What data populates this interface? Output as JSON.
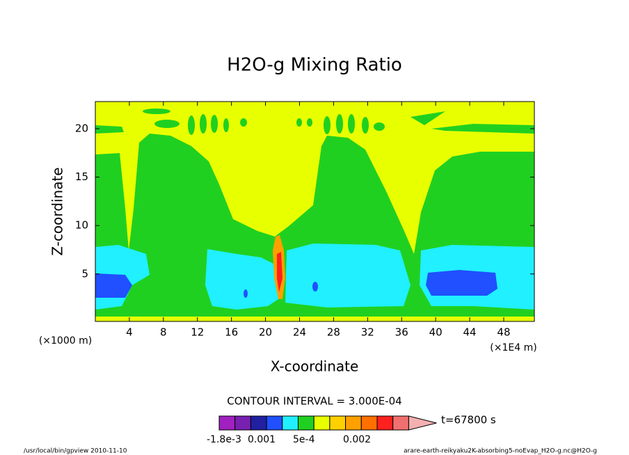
{
  "chart_data": {
    "type": "contour",
    "title": "H2O-g Mixing Ratio",
    "x_label": "X-coordinate",
    "y_label": "Z-coordinate",
    "x_unit": "(×1E4 m)",
    "y_unit": "(×1000 m)",
    "xlim": [
      0,
      51.6
    ],
    "ylim": [
      0.1,
      22.8
    ],
    "xticks": [
      4,
      8,
      12,
      16,
      20,
      24,
      28,
      32,
      36,
      40,
      44,
      48
    ],
    "yticks": [
      5,
      10,
      15,
      20
    ],
    "contour_interval": "CONTOUR INTERVAL = 3.000E-04",
    "time_label": "t=67800 s",
    "colorbar_colors": [
      "#a020c0",
      "#7820b0",
      "#2020a0",
      "#2050ff",
      "#20f0ff",
      "#20d020",
      "#e8ff00",
      "#ffd000",
      "#ffa000",
      "#ff7000",
      "#ff2020",
      "#f07070",
      "#f4b0b0"
    ],
    "colorbar_labels": [
      "-1.8e-3",
      "0.001",
      "5e-4",
      "0.002"
    ],
    "footer_left": "/usr/local/bin/gpview  2010-11-10",
    "footer_right": "arare-earth-reikyaku2K-absorbing5-noEvap_H2O-g.nc@H2O-g"
  }
}
